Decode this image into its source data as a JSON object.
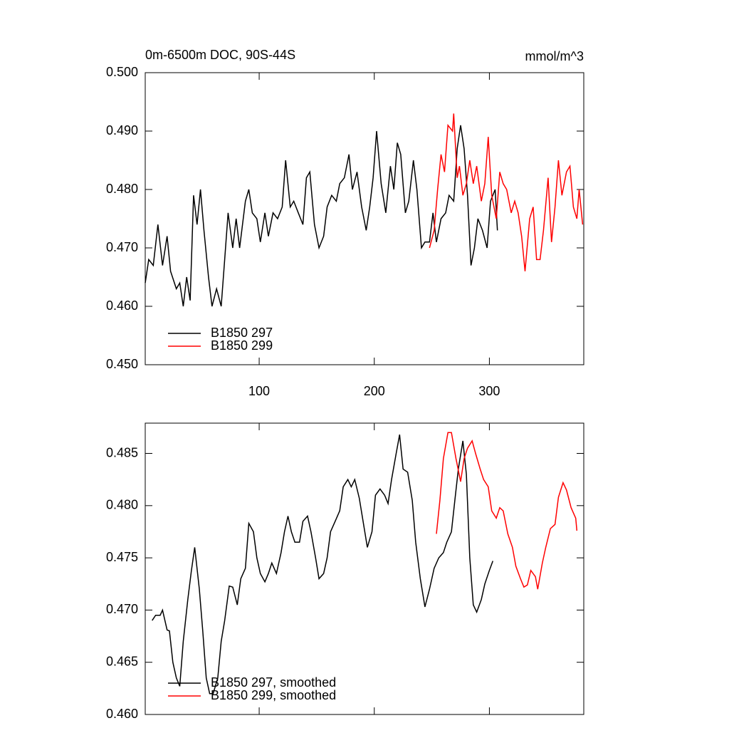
{
  "chart_data": [
    {
      "type": "line",
      "title": "0m-6500m DOC, 90S-44S",
      "units": "mmol/m^3",
      "xlim": [
        1,
        382
      ],
      "xticks": [
        100,
        200,
        300
      ],
      "ylim": [
        0.45,
        0.5
      ],
      "yticks": [
        {
          "value": 0.45,
          "label": "0.450"
        },
        {
          "value": 0.46,
          "label": "0.460"
        },
        {
          "value": 0.47,
          "label": "0.470"
        },
        {
          "value": 0.48,
          "label": "0.480"
        },
        {
          "value": 0.49,
          "label": "0.490"
        },
        {
          "value": 0.5,
          "label": "0.500"
        }
      ],
      "legend": "lower left",
      "series": [
        {
          "name": "B1850 297",
          "color": "#000000",
          "x": [
            1,
            4,
            8,
            12,
            16,
            20,
            23,
            28,
            31,
            34,
            37,
            40,
            43,
            46,
            49,
            52,
            56,
            59,
            63,
            67,
            70,
            73,
            77,
            80,
            83,
            88,
            91,
            94,
            98,
            101,
            105,
            108,
            112,
            116,
            120,
            123,
            127,
            130,
            134,
            138,
            141,
            144,
            148,
            152,
            156,
            159,
            163,
            167,
            170,
            174,
            178,
            181,
            185,
            189,
            193,
            196,
            199,
            202,
            206,
            210,
            214,
            217,
            220,
            223,
            227,
            230,
            234,
            237,
            241,
            244,
            248,
            251,
            254,
            258,
            262,
            265,
            269,
            272,
            275,
            278,
            281,
            284,
            287,
            290,
            294,
            298,
            301,
            305,
            307
          ],
          "values": [
            0.464,
            0.468,
            0.467,
            0.474,
            0.467,
            0.472,
            0.466,
            0.463,
            0.464,
            0.46,
            0.465,
            0.461,
            0.479,
            0.474,
            0.48,
            0.473,
            0.465,
            0.46,
            0.463,
            0.46,
            0.468,
            0.476,
            0.47,
            0.475,
            0.47,
            0.478,
            0.48,
            0.476,
            0.475,
            0.471,
            0.476,
            0.472,
            0.476,
            0.475,
            0.477,
            0.485,
            0.477,
            0.478,
            0.476,
            0.474,
            0.482,
            0.483,
            0.474,
            0.47,
            0.472,
            0.477,
            0.479,
            0.478,
            0.481,
            0.482,
            0.486,
            0.48,
            0.483,
            0.477,
            0.473,
            0.477,
            0.482,
            0.49,
            0.481,
            0.476,
            0.484,
            0.48,
            0.488,
            0.486,
            0.476,
            0.478,
            0.485,
            0.48,
            0.47,
            0.471,
            0.471,
            0.476,
            0.471,
            0.475,
            0.476,
            0.479,
            0.478,
            0.487,
            0.491,
            0.487,
            0.479,
            0.467,
            0.47,
            0.475,
            0.473,
            0.47,
            0.478,
            0.48,
            0.473
          ]
        },
        {
          "name": "B1850 299",
          "color": "#ff0000",
          "x": [
            248,
            252,
            255,
            258,
            261,
            264,
            268,
            269,
            272,
            274,
            277,
            280,
            283,
            286,
            289,
            293,
            296,
            299,
            302,
            306,
            309,
            312,
            315,
            319,
            322,
            325,
            328,
            331,
            335,
            338,
            341,
            344,
            347,
            351,
            354,
            357,
            360,
            363,
            367,
            370,
            373,
            376,
            378,
            381
          ],
          "values": [
            0.47,
            0.473,
            0.48,
            0.486,
            0.483,
            0.491,
            0.49,
            0.493,
            0.482,
            0.484,
            0.479,
            0.481,
            0.485,
            0.481,
            0.484,
            0.478,
            0.481,
            0.489,
            0.479,
            0.475,
            0.483,
            0.481,
            0.48,
            0.476,
            0.478,
            0.476,
            0.472,
            0.466,
            0.475,
            0.477,
            0.468,
            0.468,
            0.473,
            0.482,
            0.471,
            0.477,
            0.485,
            0.479,
            0.483,
            0.484,
            0.477,
            0.475,
            0.48,
            0.474
          ]
        }
      ]
    },
    {
      "type": "line",
      "xlim": [
        1,
        382
      ],
      "xticks": [
        100,
        200,
        300
      ],
      "ylim": [
        0.46,
        0.4879
      ],
      "yticks": [
        {
          "value": 0.46,
          "label": "0.460"
        },
        {
          "value": 0.465,
          "label": "0.465"
        },
        {
          "value": 0.47,
          "label": "0.470"
        },
        {
          "value": 0.475,
          "label": "0.475"
        },
        {
          "value": 0.48,
          "label": "0.480"
        },
        {
          "value": 0.485,
          "label": "0.485"
        }
      ],
      "legend": "lower left",
      "series": [
        {
          "name": "B1850 297, smoothed",
          "color": "#000000",
          "x": [
            7,
            10,
            14,
            16,
            20,
            22,
            25,
            28,
            31,
            34,
            38,
            41,
            44,
            48,
            51,
            54,
            57,
            60,
            64,
            67,
            70,
            74,
            77,
            81,
            84,
            88,
            91,
            95,
            98,
            101,
            105,
            108,
            111,
            115,
            119,
            122,
            125,
            128,
            131,
            135,
            138,
            142,
            145,
            149,
            152,
            156,
            159,
            162,
            166,
            170,
            173,
            177,
            180,
            183,
            187,
            191,
            194,
            198,
            201,
            205,
            209,
            212,
            215,
            219,
            222,
            225,
            229,
            233,
            236,
            240,
            244,
            248,
            252,
            256,
            260,
            263,
            267,
            270,
            273,
            277,
            280,
            283,
            286,
            289,
            293,
            296,
            300,
            303
          ],
          "values": [
            0.469,
            0.4695,
            0.4695,
            0.47,
            0.4681,
            0.468,
            0.465,
            0.4635,
            0.4627,
            0.467,
            0.471,
            0.4737,
            0.476,
            0.472,
            0.468,
            0.4635,
            0.462,
            0.462,
            0.4635,
            0.467,
            0.469,
            0.4723,
            0.4722,
            0.4705,
            0.473,
            0.474,
            0.4783,
            0.4775,
            0.475,
            0.4735,
            0.4727,
            0.4735,
            0.4745,
            0.4735,
            0.4755,
            0.4775,
            0.479,
            0.4775,
            0.4765,
            0.4765,
            0.4785,
            0.479,
            0.4775,
            0.475,
            0.473,
            0.4735,
            0.475,
            0.4775,
            0.4785,
            0.4795,
            0.4818,
            0.4825,
            0.4818,
            0.4825,
            0.4807,
            0.478,
            0.476,
            0.4775,
            0.481,
            0.4816,
            0.481,
            0.4802,
            0.4825,
            0.485,
            0.4868,
            0.4835,
            0.4832,
            0.4805,
            0.4765,
            0.473,
            0.4703,
            0.472,
            0.474,
            0.475,
            0.4755,
            0.4765,
            0.4775,
            0.4805,
            0.4835,
            0.4862,
            0.483,
            0.475,
            0.4705,
            0.4698,
            0.471,
            0.4725,
            0.4738,
            0.4747
          ]
        },
        {
          "name": "B1850 299, smoothed",
          "color": "#ff0000",
          "x": [
            254,
            257,
            260,
            264,
            267,
            271,
            275,
            278,
            281,
            285,
            288,
            292,
            295,
            299,
            302,
            306,
            309,
            312,
            316,
            320,
            323,
            327,
            330,
            333,
            336,
            340,
            342,
            346,
            349,
            353,
            357,
            360,
            364,
            367,
            371,
            375,
            376
          ],
          "values": [
            0.4773,
            0.4805,
            0.4845,
            0.487,
            0.487,
            0.4845,
            0.4823,
            0.4845,
            0.4855,
            0.4862,
            0.485,
            0.4835,
            0.4825,
            0.4818,
            0.4795,
            0.4788,
            0.4798,
            0.4795,
            0.4773,
            0.476,
            0.4742,
            0.473,
            0.4722,
            0.4724,
            0.4738,
            0.4732,
            0.472,
            0.4745,
            0.476,
            0.4778,
            0.4782,
            0.4808,
            0.4822,
            0.4815,
            0.4798,
            0.4788,
            0.4776
          ]
        }
      ]
    }
  ]
}
